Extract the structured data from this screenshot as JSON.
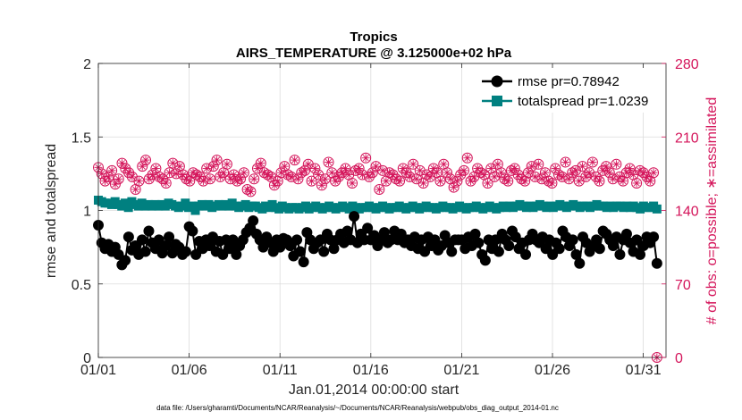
{
  "chart_data": {
    "type": "line",
    "title": "Tropics",
    "subtitle": "AIRS_TEMPERATURE @ 3.125000e+02 hPa",
    "xlabel": "Jan.01,2014 00:00:00 start",
    "ylabel": "rmse and totalspread",
    "ylabel_right": "# of obs: o=possible; ∗=assimilated",
    "x_ticks": [
      "01/01",
      "01/06",
      "01/11",
      "01/16",
      "01/21",
      "01/26",
      "01/31"
    ],
    "x_tick_days": [
      0,
      5,
      10,
      15,
      20,
      25,
      30
    ],
    "xlim": [
      0,
      31.25
    ],
    "ylim": [
      0,
      2
    ],
    "y_ticks": [
      "0",
      "0.5",
      "1",
      "1.5",
      "2"
    ],
    "y_tick_values": [
      0,
      0.5,
      1,
      1.5,
      2
    ],
    "ylim_right": [
      0,
      280
    ],
    "y_ticks_right": [
      "0",
      "70",
      "140",
      "210",
      "280"
    ],
    "y_tick_values_right": [
      0,
      70,
      140,
      210,
      280
    ],
    "legend_position": "top-right",
    "series": [
      {
        "name": "rmse pr=0.78942",
        "axis": "left",
        "color": "#000000",
        "marker": "circle",
        "values": [
          0.9,
          0.78,
          0.74,
          0.77,
          0.72,
          0.75,
          0.7,
          0.63,
          0.66,
          0.82,
          0.73,
          0.76,
          0.7,
          0.8,
          0.72,
          0.86,
          0.78,
          0.74,
          0.8,
          0.71,
          0.76,
          0.82,
          0.71,
          0.77,
          0.75,
          0.7,
          0.72,
          0.89,
          0.86,
          0.7,
          0.79,
          0.74,
          0.8,
          0.76,
          0.82,
          0.72,
          0.79,
          0.7,
          0.8,
          0.74,
          0.8,
          0.7,
          0.76,
          0.8,
          0.85,
          0.88,
          0.93,
          0.84,
          0.8,
          0.75,
          0.82,
          0.78,
          0.72,
          0.8,
          0.75,
          0.81,
          0.8,
          0.76,
          0.69,
          0.8,
          0.72,
          0.65,
          0.85,
          0.8,
          0.74,
          0.78,
          0.8,
          0.72,
          0.84,
          0.8,
          0.74,
          0.8,
          0.84,
          0.78,
          0.86,
          0.8,
          0.96,
          0.78,
          0.84,
          0.8,
          0.88,
          0.8,
          0.83,
          0.76,
          0.8,
          0.85,
          0.78,
          0.8,
          0.86,
          0.8,
          0.84,
          0.78,
          0.8,
          0.76,
          0.82,
          0.74,
          0.8,
          0.72,
          0.82,
          0.76,
          0.8,
          0.73,
          0.76,
          0.83,
          0.78,
          0.72,
          0.8,
          0.8,
          0.8,
          0.74,
          0.82,
          0.76,
          0.84,
          0.78,
          0.7,
          0.66,
          0.8,
          0.74,
          0.8,
          0.72,
          0.84,
          0.8,
          0.76,
          0.86,
          0.82,
          0.74,
          0.78,
          0.7,
          0.8,
          0.84,
          0.8,
          0.78,
          0.82,
          0.74,
          0.8,
          0.7,
          0.78,
          0.74,
          0.86,
          0.82,
          0.76,
          0.8,
          0.7,
          0.64,
          0.82,
          0.78,
          0.72,
          0.76,
          0.8,
          0.74,
          0.86,
          0.84,
          0.8,
          0.76,
          0.82,
          0.7,
          0.8,
          0.84,
          0.78,
          0.72,
          0.8,
          0.7,
          0.76,
          0.82,
          0.78,
          0.82,
          0.64
        ]
      },
      {
        "name": "totalspread pr=1.0239",
        "axis": "left",
        "color": "#008080",
        "marker": "square",
        "values": [
          1.07,
          1.06,
          1.05,
          1.05,
          1.04,
          1.06,
          1.04,
          1.03,
          1.05,
          1.02,
          1.06,
          1.04,
          1.03,
          1.05,
          1.03,
          1.04,
          1.03,
          1.04,
          1.03,
          1.04,
          1.03,
          1.05,
          1.04,
          1.03,
          1.02,
          1.03,
          1.05,
          1.02,
          1.03,
          1.0,
          1.03,
          1.04,
          1.03,
          1.04,
          1.02,
          1.03,
          1.04,
          1.03,
          1.04,
          1.03,
          1.05,
          1.03,
          1.02,
          1.03,
          1.04,
          1.02,
          1.03,
          1.03,
          1.02,
          1.01,
          1.03,
          1.02,
          1.04,
          1.02,
          1.01,
          1.03,
          1.02,
          1.01,
          1.02,
          1.02,
          1.01,
          1.02,
          1.03,
          1.01,
          1.02,
          1.03,
          1.02,
          1.01,
          1.02,
          1.03,
          1.02,
          1.01,
          1.02,
          1.03,
          1.02,
          1.01,
          1.03,
          1.02,
          1.01,
          1.02,
          1.02,
          1.03,
          1.02,
          1.01,
          1.02,
          1.03,
          1.02,
          1.01,
          1.02,
          1.02,
          1.03,
          1.02,
          1.01,
          1.02,
          1.03,
          1.02,
          1.01,
          1.02,
          1.03,
          1.02,
          1.02,
          1.01,
          1.02,
          1.03,
          1.02,
          1.02,
          1.01,
          1.02,
          1.03,
          1.02,
          1.01,
          1.02,
          1.02,
          1.03,
          1.02,
          1.01,
          1.02,
          1.03,
          1.02,
          1.01,
          1.02,
          1.03,
          1.02,
          1.03,
          1.02,
          1.03,
          1.04,
          1.03,
          1.02,
          1.03,
          1.02,
          1.03,
          1.04,
          1.03,
          1.02,
          1.03,
          1.02,
          1.03,
          1.04,
          1.03,
          1.02,
          1.03,
          1.04,
          1.03,
          1.02,
          1.03,
          1.03,
          1.02,
          1.03,
          1.04,
          1.03,
          1.03,
          1.02,
          1.03,
          1.02,
          1.03,
          1.03,
          1.02,
          1.03,
          1.02,
          1.03,
          1.02,
          1.01,
          1.03,
          1.02,
          1.02,
          1.03,
          1.01
        ]
      },
      {
        "name": "# of obs possible",
        "axis": "right",
        "color": "#d4145a",
        "marker": "open-circle",
        "values": [
          181,
          175,
          168,
          172,
          178,
          165,
          170,
          185,
          180,
          176,
          172,
          160,
          168,
          182,
          188,
          170,
          174,
          180,
          172,
          170,
          166,
          176,
          185,
          175,
          182,
          174,
          170,
          168,
          176,
          174,
          172,
          168,
          180,
          170,
          182,
          188,
          172,
          176,
          184,
          170,
          174,
          168,
          170,
          176,
          160,
          158,
          170,
          180,
          185,
          176,
          174,
          172,
          164,
          168,
          176,
          182,
          174,
          172,
          188,
          170,
          176,
          178,
          184,
          168,
          180,
          174,
          164,
          170,
          186,
          176,
          168,
          172,
          176,
          180,
          174,
          166,
          178,
          180,
          174,
          190,
          172,
          176,
          182,
          160,
          178,
          168,
          176,
          174,
          170,
          168,
          180,
          176,
          172,
          184,
          170,
          178,
          166,
          174,
          172,
          180,
          176,
          168,
          184,
          176,
          170,
          162,
          168,
          174,
          178,
          190,
          168,
          172,
          180,
          176,
          174,
          166,
          180,
          172,
          184,
          176,
          170,
          168,
          178,
          180,
          174,
          170,
          168,
          176,
          182,
          172,
          184,
          170,
          176,
          168,
          166,
          180,
          174,
          172,
          186,
          170,
          176,
          178,
          168,
          182,
          172,
          176,
          186,
          172,
          168,
          178,
          182,
          176,
          170,
          184,
          172,
          168,
          176,
          180,
          174,
          166,
          178,
          176,
          172,
          168,
          176,
          0
        ]
      },
      {
        "name": "# of obs assimilated",
        "axis": "right",
        "color": "#d4145a",
        "marker": "star",
        "values": [
          181,
          175,
          168,
          172,
          178,
          165,
          170,
          185,
          180,
          176,
          172,
          160,
          168,
          182,
          188,
          170,
          174,
          180,
          172,
          170,
          166,
          176,
          185,
          175,
          182,
          174,
          170,
          168,
          176,
          174,
          172,
          168,
          180,
          170,
          182,
          188,
          172,
          176,
          184,
          170,
          174,
          168,
          170,
          176,
          160,
          158,
          170,
          180,
          185,
          176,
          174,
          172,
          164,
          168,
          176,
          182,
          174,
          172,
          188,
          170,
          176,
          178,
          184,
          168,
          180,
          174,
          164,
          170,
          186,
          176,
          168,
          172,
          176,
          180,
          174,
          166,
          178,
          180,
          174,
          190,
          172,
          176,
          182,
          160,
          178,
          168,
          176,
          174,
          170,
          168,
          180,
          176,
          172,
          184,
          170,
          178,
          166,
          174,
          172,
          180,
          176,
          168,
          184,
          176,
          170,
          162,
          168,
          174,
          178,
          190,
          168,
          172,
          180,
          176,
          174,
          166,
          180,
          172,
          184,
          176,
          170,
          168,
          178,
          180,
          174,
          170,
          168,
          176,
          182,
          172,
          184,
          170,
          176,
          168,
          166,
          180,
          174,
          172,
          186,
          170,
          176,
          178,
          168,
          182,
          172,
          176,
          186,
          172,
          168,
          178,
          182,
          176,
          170,
          184,
          172,
          168,
          176,
          180,
          174,
          166,
          178,
          176,
          172,
          168,
          176,
          0
        ]
      }
    ],
    "footnote": "data file: /Users/gharamti/Documents/NCAR/Reanalysis/~/Documents/NCAR/Reanalysis/webpub/obs_diag_output_2014-01.nc"
  }
}
